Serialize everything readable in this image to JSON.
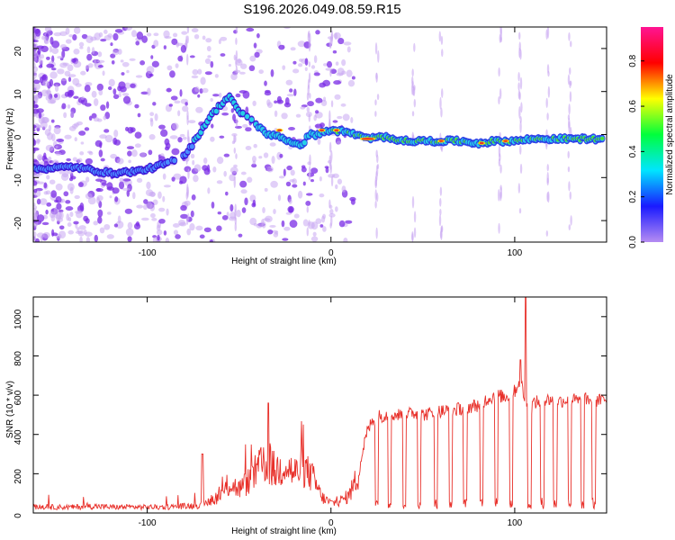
{
  "title": "S196.2026.049.08.59.R15",
  "colors": {
    "line": "#e8302a",
    "ridge_high": "#e8302a",
    "ridge_mid": "#4cde3a",
    "ridge_low": "#26d0e8",
    "scatter": "#7a2be6",
    "scatter_light": "#c9a8f2"
  },
  "chart_data": [
    {
      "type": "heatmap",
      "name": "spectrogram",
      "xlabel": "Height of straight line (km)",
      "ylabel": "Frequency (Hz)",
      "xlim": [
        -162,
        150
      ],
      "ylim": [
        -25,
        25
      ],
      "xticks": [
        -100,
        0,
        100
      ],
      "yticks": [
        -20,
        -10,
        0,
        10,
        20
      ],
      "ridge": {
        "x": [
          -162,
          -140,
          -120,
          -105,
          -95,
          -85,
          -78,
          -72,
          -66,
          -60,
          -55,
          -50,
          -45,
          -40,
          -35,
          -30,
          -25,
          -20,
          -15,
          -12,
          -8,
          -4,
          0,
          10,
          20,
          30,
          40,
          50,
          60,
          70,
          80,
          90,
          100,
          110,
          120,
          130,
          140,
          148
        ],
        "y": [
          -8,
          -7.5,
          -9,
          -8.5,
          -7.5,
          -6,
          -4,
          0,
          4,
          7,
          9,
          5,
          4,
          2,
          0,
          0,
          -1,
          -2.5,
          -2,
          0,
          0,
          0.5,
          1,
          0.5,
          -1,
          -0.5,
          -1.5,
          -1.5,
          -1.5,
          -1.5,
          -2,
          -1.5,
          -1.5,
          -1,
          -1,
          -1,
          -1,
          -1
        ]
      },
      "colorbar": {
        "label": "Normalized spectral amplitude",
        "range": [
          0,
          0.95
        ],
        "ticks": [
          0.0,
          0.2,
          0.4,
          0.6,
          0.8
        ],
        "tick_labels": [
          "0.0",
          "0.2",
          "0.4",
          "0.6",
          "0.8"
        ],
        "colormap": [
          "#b58cf2",
          "#1a1aff",
          "#00e5ff",
          "#00ff3c",
          "#ffff00",
          "#ff0000",
          "#ff1493"
        ]
      }
    },
    {
      "type": "line",
      "name": "snr",
      "xlabel": "Height of straight line (km)",
      "ylabel": "SNR (10 * v/v)",
      "xlim": [
        -162,
        150
      ],
      "ylim": [
        0,
        1100
      ],
      "xticks": [
        -100,
        0,
        100
      ],
      "yticks": [
        0,
        200,
        400,
        600,
        800,
        1000
      ],
      "series": [
        {
          "name": "SNR",
          "x": [
            -162,
            -150,
            -140,
            -130,
            -120,
            -110,
            -100,
            -90,
            -80,
            -70,
            -62,
            -58,
            -55,
            -50,
            -45,
            -40,
            -35,
            -30,
            -25,
            -20,
            -15,
            -10,
            -5,
            0,
            5,
            10,
            15,
            18,
            20,
            22,
            25,
            30,
            35,
            40,
            45,
            50,
            55,
            60,
            65,
            70,
            75,
            80,
            85,
            90,
            95,
            100,
            103,
            105,
            108,
            110,
            115,
            120,
            125,
            130,
            135,
            140,
            145,
            150
          ],
          "y": [
            30,
            30,
            30,
            35,
            30,
            30,
            30,
            30,
            35,
            40,
            80,
            110,
            150,
            120,
            160,
            220,
            260,
            210,
            250,
            200,
            230,
            180,
            80,
            50,
            60,
            90,
            200,
            350,
            420,
            460,
            490,
            500,
            500,
            500,
            510,
            500,
            510,
            520,
            520,
            530,
            540,
            550,
            580,
            600,
            590,
            620,
            680,
            600,
            500,
            560,
            570,
            580,
            570,
            580,
            570,
            580,
            570,
            580
          ]
        }
      ],
      "dropouts": [
        25,
        32,
        40,
        48,
        57,
        65,
        73,
        82,
        90,
        98,
        108,
        115,
        122,
        130,
        137,
        143
      ],
      "spikes": {
        "x": [
          -70,
          -34,
          103,
          106
        ],
        "y": [
          300,
          560,
          780,
          1100
        ]
      }
    }
  ]
}
